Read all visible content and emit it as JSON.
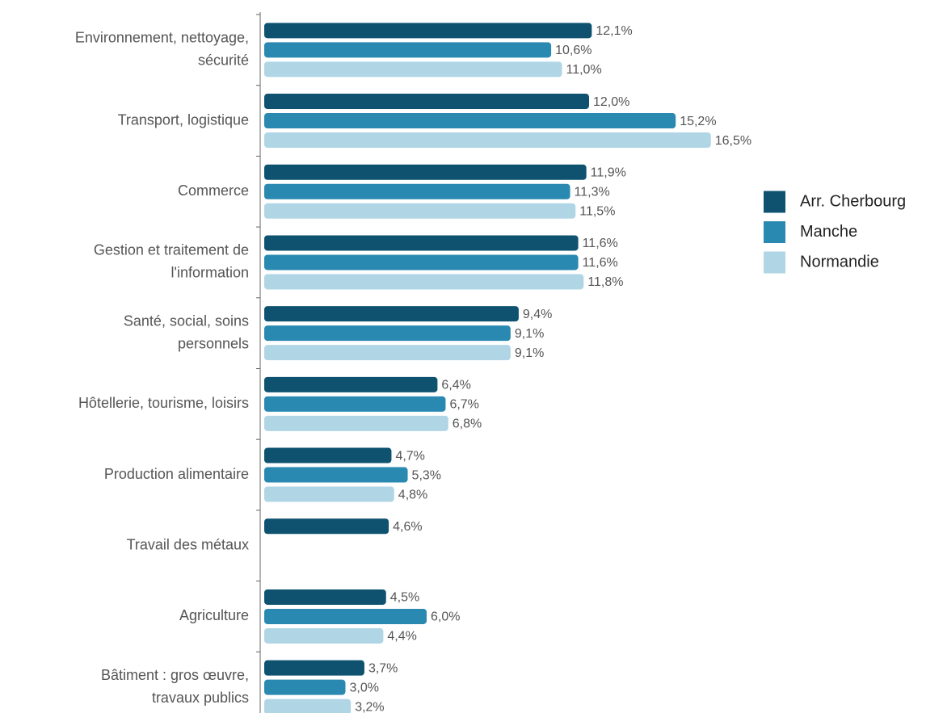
{
  "chart_data": {
    "type": "bar",
    "orientation": "horizontal",
    "categories": [
      [
        "Environnement, nettoyage,",
        "sécurité"
      ],
      [
        "Transport, logistique"
      ],
      [
        "Commerce"
      ],
      [
        "Gestion et traitement de",
        "l'information"
      ],
      [
        "Santé, social, soins",
        "personnels"
      ],
      [
        "Hôtellerie, tourisme, loisirs"
      ],
      [
        "Production alimentaire"
      ],
      [
        "Travail des métaux"
      ],
      [
        "Agriculture"
      ],
      [
        "Bâtiment : gros œuvre,",
        "travaux publics"
      ]
    ],
    "series": [
      {
        "name": "Arr. Cherbourg",
        "color": "#0e5270",
        "values": [
          12.1,
          12.0,
          11.9,
          11.6,
          9.4,
          6.4,
          4.7,
          4.6,
          4.5,
          3.7
        ],
        "value_labels": [
          "12,1%",
          "12,0%",
          "11,9%",
          "11,6%",
          "9,4%",
          "6,4%",
          "4,7%",
          "4,6%",
          "4,5%",
          "3,7%"
        ]
      },
      {
        "name": "Manche",
        "color": "#2a89b0",
        "values": [
          10.6,
          15.2,
          11.3,
          11.6,
          9.1,
          6.7,
          5.3,
          null,
          6.0,
          3.0
        ],
        "value_labels": [
          "10,6%",
          "15,2%",
          "11,3%",
          "11,6%",
          "9,1%",
          "6,7%",
          "5,3%",
          null,
          "6,0%",
          "3,0%"
        ]
      },
      {
        "name": "Normandie",
        "color": "#b0d6e6",
        "values": [
          11.0,
          16.5,
          11.5,
          11.8,
          9.1,
          6.8,
          4.8,
          null,
          4.4,
          3.2
        ],
        "value_labels": [
          "11,0%",
          "16,5%",
          "11,5%",
          "11,8%",
          "9,1%",
          "6,8%",
          "4,8%",
          null,
          "4,4%",
          "3,2%"
        ]
      }
    ],
    "legend": "right"
  }
}
